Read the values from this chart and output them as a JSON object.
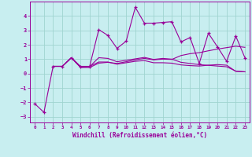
{
  "xlabel": "Windchill (Refroidissement éolien,°C)",
  "bg_color": "#c8eef0",
  "grid_color": "#a0d4d0",
  "line_color": "#990099",
  "xlim": [
    -0.5,
    23.5
  ],
  "ylim": [
    -3.4,
    5.0
  ],
  "yticks": [
    -3,
    -2,
    -1,
    0,
    1,
    2,
    3,
    4
  ],
  "xticks": [
    0,
    1,
    2,
    3,
    4,
    5,
    6,
    7,
    8,
    9,
    10,
    11,
    12,
    13,
    14,
    15,
    16,
    17,
    18,
    19,
    20,
    21,
    22,
    23
  ],
  "s1_x": [
    0,
    1,
    2,
    3,
    4,
    5,
    6,
    7,
    8,
    9,
    10,
    11,
    12,
    13,
    14,
    15,
    16,
    17,
    18,
    19,
    20,
    21,
    22,
    23
  ],
  "s1_y": [
    -2.1,
    -2.7,
    0.5,
    0.5,
    1.1,
    0.5,
    0.5,
    3.05,
    2.65,
    1.75,
    2.25,
    4.6,
    3.5,
    3.5,
    3.55,
    3.6,
    2.2,
    2.5,
    0.7,
    2.8,
    1.85,
    0.85,
    2.6,
    1.1
  ],
  "s2_x": [
    2,
    3,
    4,
    5,
    6,
    7,
    8,
    9,
    10,
    11,
    12,
    13,
    14,
    15,
    16,
    17,
    18,
    19,
    20,
    21,
    22,
    23
  ],
  "s2_y": [
    0.5,
    0.5,
    1.1,
    0.45,
    0.5,
    0.8,
    0.8,
    0.65,
    0.75,
    0.85,
    0.9,
    0.75,
    0.75,
    0.72,
    0.6,
    0.55,
    0.52,
    0.58,
    0.62,
    0.58,
    0.15,
    0.12
  ],
  "s3_x": [
    2,
    3,
    4,
    5,
    6,
    7,
    8,
    9,
    10,
    11,
    12,
    13,
    14,
    15,
    16,
    17,
    18,
    19,
    20,
    21,
    22,
    23
  ],
  "s3_y": [
    0.5,
    0.5,
    1.1,
    0.42,
    0.42,
    0.72,
    0.78,
    0.7,
    0.82,
    0.95,
    1.05,
    0.95,
    1.0,
    0.98,
    1.25,
    1.38,
    1.45,
    1.58,
    1.7,
    1.8,
    1.9,
    1.82
  ],
  "s4_x": [
    2,
    3,
    4,
    5,
    6,
    7,
    8,
    9,
    10,
    11,
    12,
    13,
    14,
    15,
    16,
    17,
    18,
    19,
    20,
    21,
    22,
    23
  ],
  "s4_y": [
    0.5,
    0.5,
    1.1,
    0.44,
    0.48,
    1.1,
    1.05,
    0.82,
    0.92,
    1.02,
    1.12,
    0.98,
    1.05,
    1.0,
    0.78,
    0.7,
    0.62,
    0.57,
    0.52,
    0.47,
    0.17,
    0.12
  ]
}
